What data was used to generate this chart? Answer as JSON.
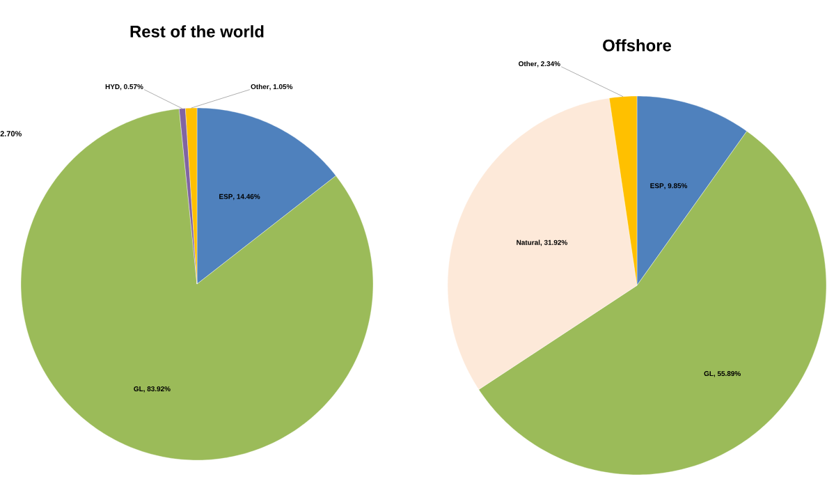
{
  "chart_data": [
    {
      "type": "pie",
      "title": "Rest of the world",
      "categories": [
        "ESP",
        "GL",
        "HYD",
        "Other"
      ],
      "values": [
        14.46,
        83.92,
        0.57,
        1.05
      ],
      "value_labels": [
        ", 14.46%",
        ", 83.92%",
        ", 0.57%",
        ", 1.05%"
      ],
      "colors": [
        "#4f81bd",
        "#9bbb59",
        "#8064a2",
        "#ffc000"
      ],
      "annotations": [
        "2.70%"
      ]
    },
    {
      "type": "pie",
      "title": "Offshore",
      "categories": [
        "ESP",
        "GL",
        "Natural",
        "Other"
      ],
      "values": [
        9.85,
        55.89,
        31.92,
        2.34
      ],
      "value_labels": [
        ", 9.85%",
        ", 55.89%",
        ", 31.92%",
        ", 2.34%"
      ],
      "colors": [
        "#4f81bd",
        "#9bbb59",
        "#fde9d9",
        "#ffc000"
      ]
    }
  ]
}
